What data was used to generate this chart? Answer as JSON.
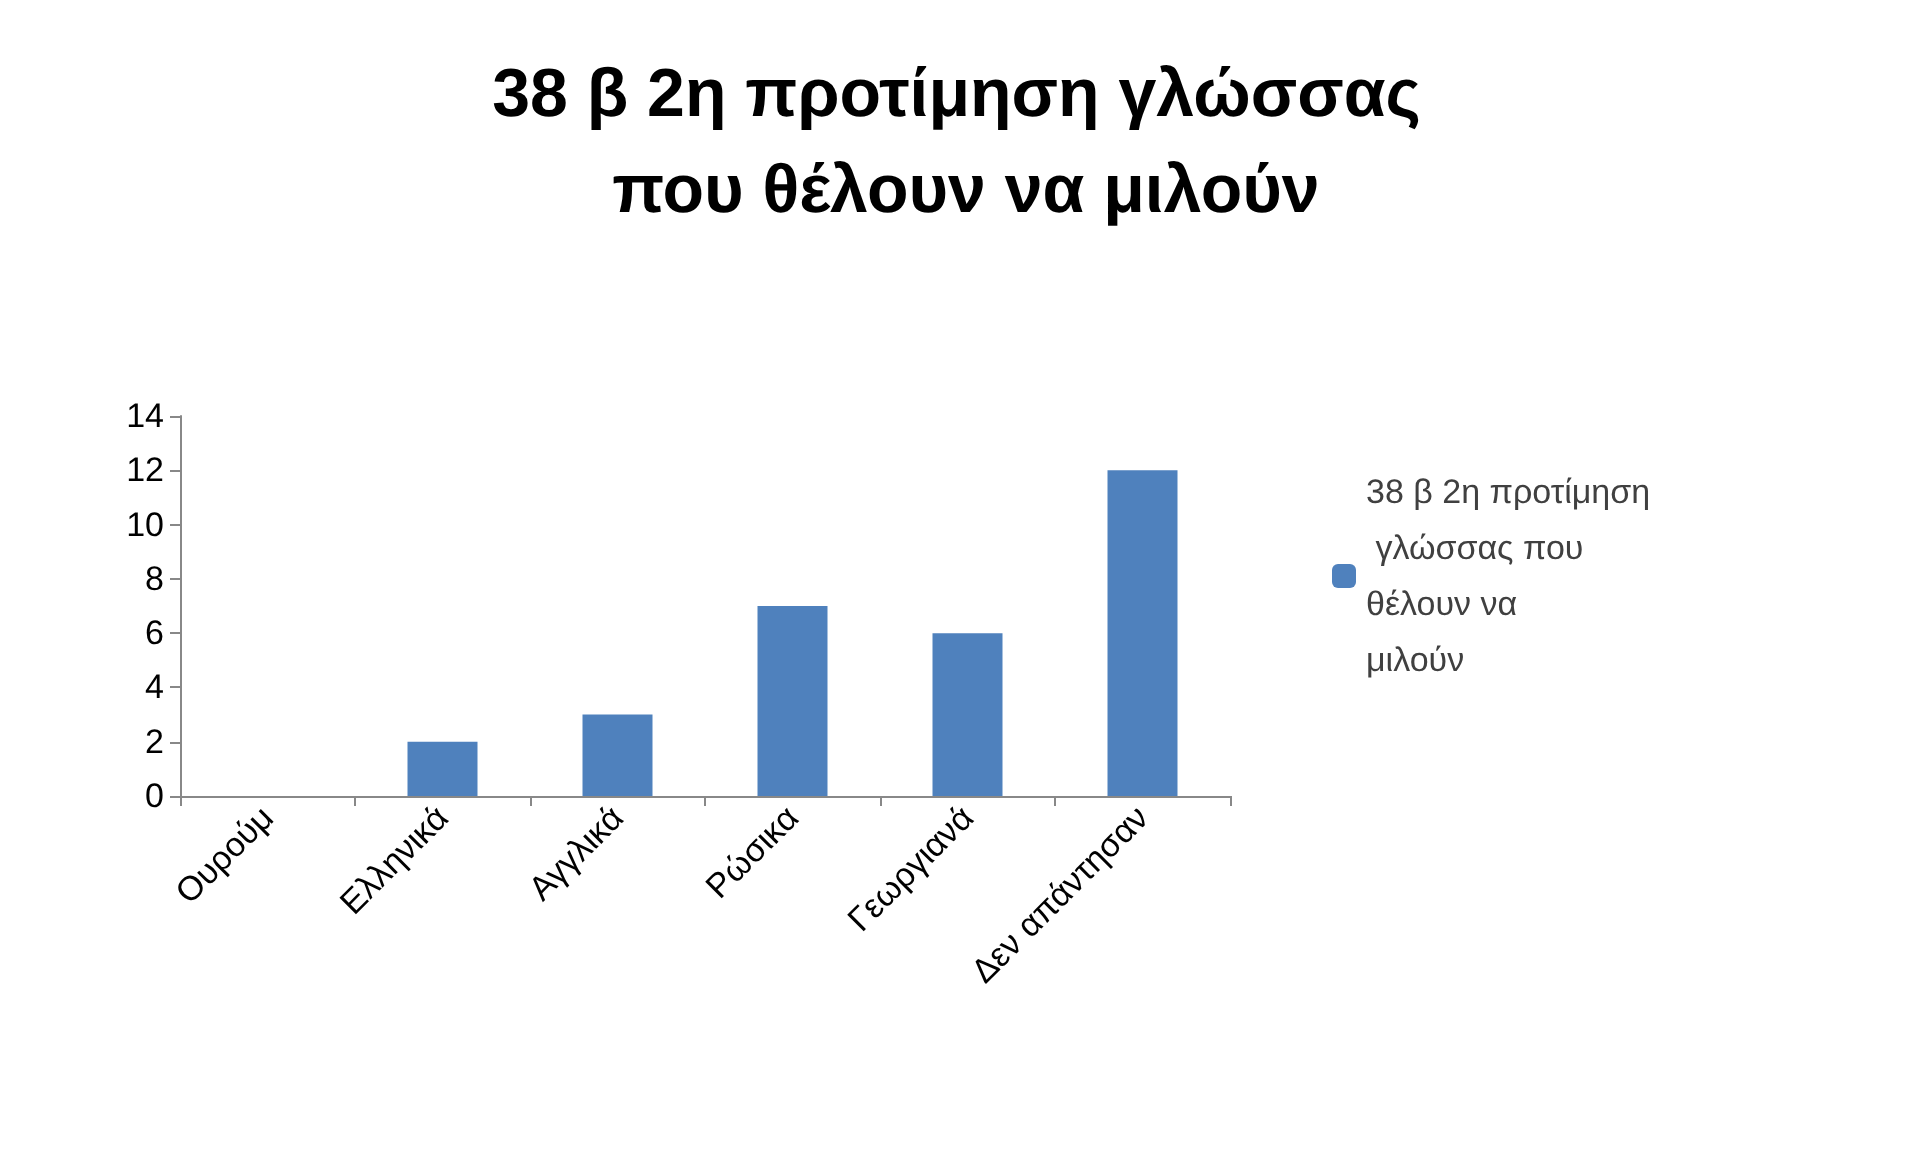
{
  "chart_data": {
    "type": "bar",
    "title": "38 β 2η προτίμηση γλώσσας που θέλουν να μιλούν",
    "categories": [
      "Ουρούμ",
      "Ελληνικά",
      "Αγγλικά",
      "Ρώσικα",
      "Γεωργιανά",
      "Δεν απάντησαν"
    ],
    "series": [
      {
        "name": "38 β 2η προτίμηση γλώσσας που θέλουν να μιλούν",
        "color": "#4f81bd",
        "values": [
          0,
          2,
          3,
          7,
          6,
          12
        ]
      }
    ],
    "ylim": [
      0,
      14
    ],
    "yticks": [
      0,
      2,
      4,
      6,
      8,
      10,
      12,
      14
    ],
    "grid": false,
    "legend": "right"
  }
}
